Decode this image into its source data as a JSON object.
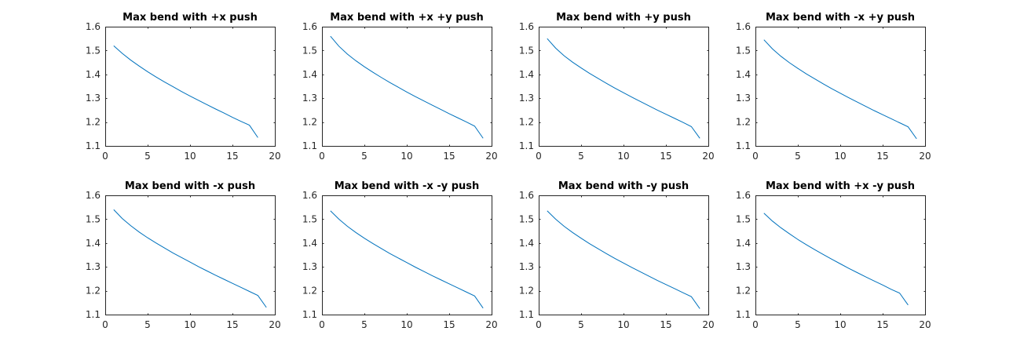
{
  "colors": {
    "series": "#0072bd",
    "axes": "#262626",
    "background": "#ffffff"
  },
  "chart_data": [
    {
      "type": "line",
      "title": "Max bend with +x push",
      "xlim": [
        0,
        20
      ],
      "ylim": [
        1.1,
        1.6
      ],
      "xticks": [
        0,
        5,
        10,
        15,
        20
      ],
      "yticks": [
        1.1,
        1.2,
        1.3,
        1.4,
        1.5,
        1.6
      ],
      "xtick_labels": [
        "0",
        "5",
        "10",
        "15",
        "20"
      ],
      "ytick_labels": [
        "1.1",
        "1.2",
        "1.3",
        "1.4",
        "1.5",
        "1.6"
      ],
      "grid": false,
      "series": [
        {
          "x": [
            1,
            2,
            3,
            4,
            5,
            6,
            7,
            8,
            9,
            10,
            11,
            12,
            13,
            14,
            15,
            16,
            17,
            18
          ],
          "y": [
            1.52,
            1.488,
            1.46,
            1.435,
            1.411,
            1.389,
            1.368,
            1.348,
            1.328,
            1.309,
            1.291,
            1.273,
            1.255,
            1.238,
            1.22,
            1.203,
            1.187,
            1.135
          ]
        }
      ]
    },
    {
      "type": "line",
      "title": "Max bend with +x +y push",
      "xlim": [
        0,
        20
      ],
      "ylim": [
        1.1,
        1.6
      ],
      "xticks": [
        0,
        5,
        10,
        15,
        20
      ],
      "yticks": [
        1.1,
        1.2,
        1.3,
        1.4,
        1.5,
        1.6
      ],
      "xtick_labels": [
        "0",
        "5",
        "10",
        "15",
        "20"
      ],
      "ytick_labels": [
        "1.1",
        "1.2",
        "1.3",
        "1.4",
        "1.5",
        "1.6"
      ],
      "grid": false,
      "series": [
        {
          "x": [
            1,
            2,
            3,
            4,
            5,
            6,
            7,
            8,
            9,
            10,
            11,
            12,
            13,
            14,
            15,
            16,
            17,
            18,
            19
          ],
          "y": [
            1.56,
            1.518,
            1.485,
            1.457,
            1.432,
            1.409,
            1.387,
            1.366,
            1.346,
            1.326,
            1.307,
            1.289,
            1.271,
            1.253,
            1.235,
            1.218,
            1.201,
            1.183,
            1.132
          ]
        }
      ]
    },
    {
      "type": "line",
      "title": "Max bend with +y push",
      "xlim": [
        0,
        20
      ],
      "ylim": [
        1.1,
        1.6
      ],
      "xticks": [
        0,
        5,
        10,
        15,
        20
      ],
      "yticks": [
        1.1,
        1.2,
        1.3,
        1.4,
        1.5,
        1.6
      ],
      "xtick_labels": [
        "0",
        "5",
        "10",
        "15",
        "20"
      ],
      "ytick_labels": [
        "1.1",
        "1.2",
        "1.3",
        "1.4",
        "1.5",
        "1.6"
      ],
      "grid": false,
      "series": [
        {
          "x": [
            1,
            2,
            3,
            4,
            5,
            6,
            7,
            8,
            9,
            10,
            11,
            12,
            13,
            14,
            15,
            16,
            17,
            18,
            19
          ],
          "y": [
            1.55,
            1.51,
            1.478,
            1.451,
            1.427,
            1.404,
            1.383,
            1.362,
            1.342,
            1.323,
            1.304,
            1.286,
            1.268,
            1.25,
            1.233,
            1.216,
            1.199,
            1.181,
            1.132
          ]
        }
      ]
    },
    {
      "type": "line",
      "title": "Max bend with -x +y push",
      "xlim": [
        0,
        20
      ],
      "ylim": [
        1.1,
        1.6
      ],
      "xticks": [
        0,
        5,
        10,
        15,
        20
      ],
      "yticks": [
        1.1,
        1.2,
        1.3,
        1.4,
        1.5,
        1.6
      ],
      "xtick_labels": [
        "0",
        "5",
        "10",
        "15",
        "20"
      ],
      "ytick_labels": [
        "1.1",
        "1.2",
        "1.3",
        "1.4",
        "1.5",
        "1.6"
      ],
      "grid": false,
      "series": [
        {
          "x": [
            1,
            2,
            3,
            4,
            5,
            6,
            7,
            8,
            9,
            10,
            11,
            12,
            13,
            14,
            15,
            16,
            17,
            18,
            19
          ],
          "y": [
            1.545,
            1.507,
            1.476,
            1.449,
            1.425,
            1.402,
            1.381,
            1.36,
            1.34,
            1.321,
            1.302,
            1.284,
            1.266,
            1.248,
            1.231,
            1.214,
            1.197,
            1.18,
            1.13
          ]
        }
      ]
    },
    {
      "type": "line",
      "title": "Max bend with -x push",
      "xlim": [
        0,
        20
      ],
      "ylim": [
        1.1,
        1.6
      ],
      "xticks": [
        0,
        5,
        10,
        15,
        20
      ],
      "yticks": [
        1.1,
        1.2,
        1.3,
        1.4,
        1.5,
        1.6
      ],
      "xtick_labels": [
        "0",
        "5",
        "10",
        "15",
        "20"
      ],
      "ytick_labels": [
        "1.1",
        "1.2",
        "1.3",
        "1.4",
        "1.5",
        "1.6"
      ],
      "grid": false,
      "series": [
        {
          "x": [
            1,
            2,
            3,
            4,
            5,
            6,
            7,
            8,
            9,
            10,
            11,
            12,
            13,
            14,
            15,
            16,
            17,
            18,
            19
          ],
          "y": [
            1.54,
            1.503,
            1.473,
            1.446,
            1.422,
            1.4,
            1.379,
            1.358,
            1.339,
            1.32,
            1.301,
            1.283,
            1.265,
            1.248,
            1.231,
            1.214,
            1.197,
            1.18,
            1.13
          ]
        }
      ]
    },
    {
      "type": "line",
      "title": "Max bend with -x -y push",
      "xlim": [
        0,
        20
      ],
      "ylim": [
        1.1,
        1.6
      ],
      "xticks": [
        0,
        5,
        10,
        15,
        20
      ],
      "yticks": [
        1.1,
        1.2,
        1.3,
        1.4,
        1.5,
        1.6
      ],
      "xtick_labels": [
        "0",
        "5",
        "10",
        "15",
        "20"
      ],
      "ytick_labels": [
        "1.1",
        "1.2",
        "1.3",
        "1.4",
        "1.5",
        "1.6"
      ],
      "grid": false,
      "series": [
        {
          "x": [
            1,
            2,
            3,
            4,
            5,
            6,
            7,
            8,
            9,
            10,
            11,
            12,
            13,
            14,
            15,
            16,
            17,
            18,
            19
          ],
          "y": [
            1.535,
            1.5,
            1.47,
            1.444,
            1.42,
            1.398,
            1.377,
            1.356,
            1.337,
            1.318,
            1.299,
            1.281,
            1.263,
            1.246,
            1.229,
            1.212,
            1.195,
            1.178,
            1.127
          ]
        }
      ]
    },
    {
      "type": "line",
      "title": "Max bend with -y push",
      "xlim": [
        0,
        20
      ],
      "ylim": [
        1.1,
        1.6
      ],
      "xticks": [
        0,
        5,
        10,
        15,
        20
      ],
      "yticks": [
        1.1,
        1.2,
        1.3,
        1.4,
        1.5,
        1.6
      ],
      "xtick_labels": [
        "0",
        "5",
        "10",
        "15",
        "20"
      ],
      "ytick_labels": [
        "1.1",
        "1.2",
        "1.3",
        "1.4",
        "1.5",
        "1.6"
      ],
      "grid": false,
      "series": [
        {
          "x": [
            1,
            2,
            3,
            4,
            5,
            6,
            7,
            8,
            9,
            10,
            11,
            12,
            13,
            14,
            15,
            16,
            17,
            18,
            19
          ],
          "y": [
            1.535,
            1.5,
            1.47,
            1.444,
            1.42,
            1.397,
            1.376,
            1.355,
            1.335,
            1.316,
            1.297,
            1.279,
            1.261,
            1.243,
            1.226,
            1.209,
            1.192,
            1.175,
            1.125
          ]
        }
      ]
    },
    {
      "type": "line",
      "title": "Max bend with +x -y push",
      "xlim": [
        0,
        20
      ],
      "ylim": [
        1.1,
        1.6
      ],
      "xticks": [
        0,
        5,
        10,
        15,
        20
      ],
      "yticks": [
        1.1,
        1.2,
        1.3,
        1.4,
        1.5,
        1.6
      ],
      "xtick_labels": [
        "0",
        "5",
        "10",
        "15",
        "20"
      ],
      "ytick_labels": [
        "1.1",
        "1.2",
        "1.3",
        "1.4",
        "1.5",
        "1.6"
      ],
      "grid": false,
      "series": [
        {
          "x": [
            1,
            2,
            3,
            4,
            5,
            6,
            7,
            8,
            9,
            10,
            11,
            12,
            13,
            14,
            15,
            16,
            17,
            18
          ],
          "y": [
            1.525,
            1.492,
            1.464,
            1.439,
            1.415,
            1.393,
            1.372,
            1.352,
            1.332,
            1.313,
            1.294,
            1.276,
            1.258,
            1.241,
            1.224,
            1.206,
            1.19,
            1.14
          ]
        }
      ]
    }
  ]
}
